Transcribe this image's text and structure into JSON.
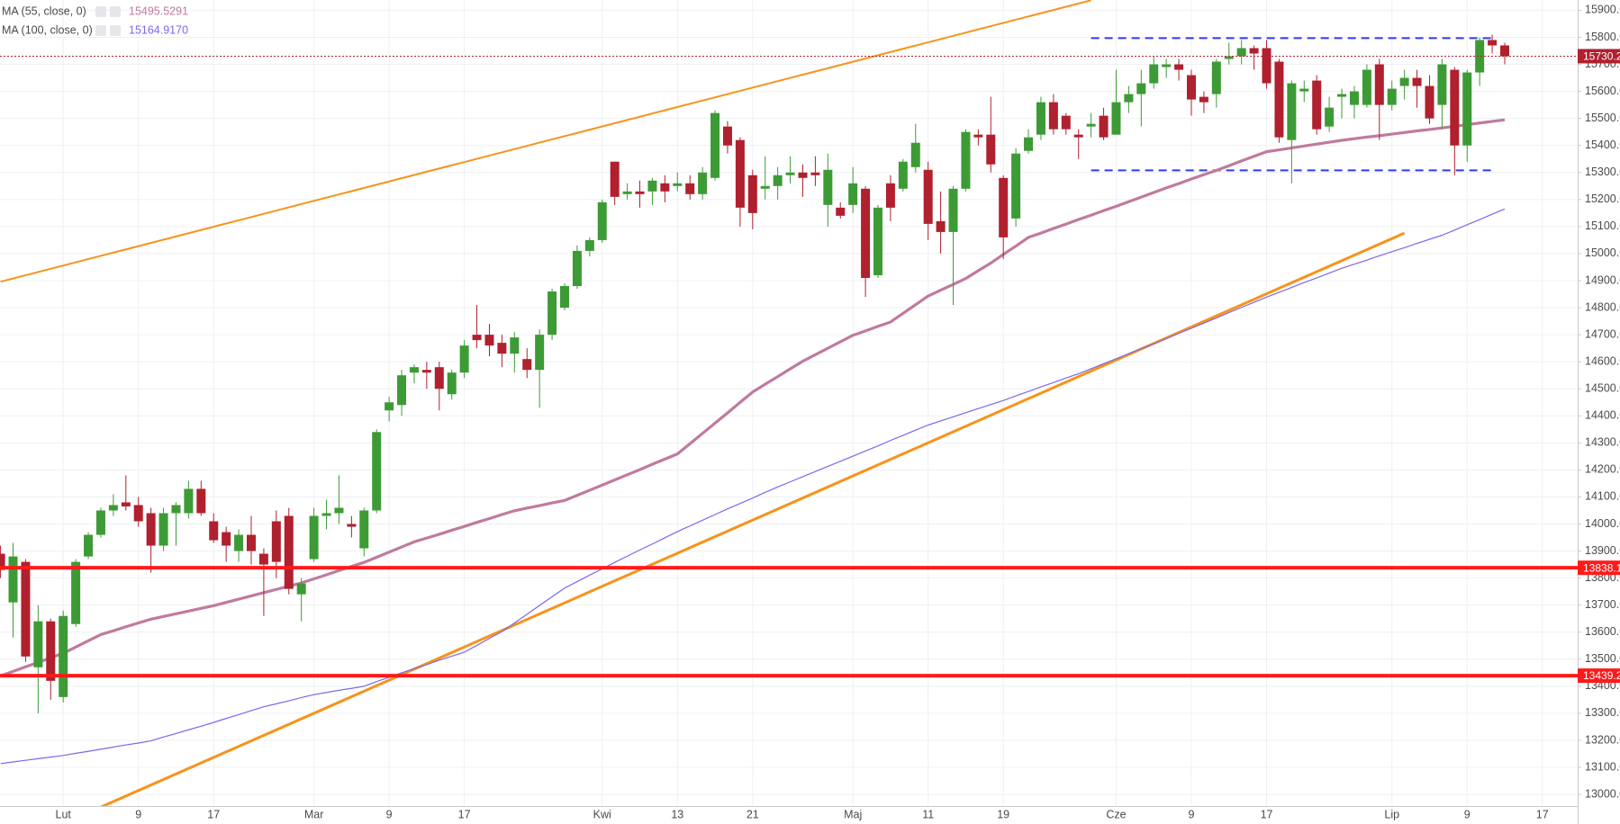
{
  "chart_data": {
    "type": "candlestick",
    "up_color": "#3d9b35",
    "down_color": "#b0202e",
    "grid": true,
    "ylim": [
      12957,
      15938
    ],
    "yticks": [
      {
        "value": 13000,
        "label": "13000.0"
      },
      {
        "value": 13100,
        "label": "13100.0"
      },
      {
        "value": 13200,
        "label": "13200.0"
      },
      {
        "value": 13300,
        "label": "13300.0"
      },
      {
        "value": 13400,
        "label": "13400.0"
      },
      {
        "value": 13500,
        "label": "13500.0"
      },
      {
        "value": 13600,
        "label": "13600.0"
      },
      {
        "value": 13700,
        "label": "13700.0"
      },
      {
        "value": 13800,
        "label": "13800.0"
      },
      {
        "value": 13900,
        "label": "13900.0"
      },
      {
        "value": 14000,
        "label": "14000.0"
      },
      {
        "value": 14100,
        "label": "14100.0"
      },
      {
        "value": 14200,
        "label": "14200.0"
      },
      {
        "value": 14300,
        "label": "14300.0"
      },
      {
        "value": 14400,
        "label": "14400.0"
      },
      {
        "value": 14500,
        "label": "14500.0"
      },
      {
        "value": 14600,
        "label": "14600.0"
      },
      {
        "value": 14700,
        "label": "14700.0"
      },
      {
        "value": 14800,
        "label": "14800.0"
      },
      {
        "value": 14900,
        "label": "14900.0"
      },
      {
        "value": 15000,
        "label": "15000.0"
      },
      {
        "value": 15100,
        "label": "15100.0"
      },
      {
        "value": 15200,
        "label": "15200.0"
      },
      {
        "value": 15300,
        "label": "15300.0"
      },
      {
        "value": 15400,
        "label": "15400.0"
      },
      {
        "value": 15500,
        "label": "15500.0"
      },
      {
        "value": 15600,
        "label": "15600.0"
      },
      {
        "value": 15700,
        "label": "15700.0"
      },
      {
        "value": 15800,
        "label": "15800.0"
      },
      {
        "value": 15900,
        "label": "15900.0"
      }
    ],
    "categories": [
      null,
      null,
      null,
      null,
      null,
      "Lut",
      null,
      null,
      null,
      null,
      null,
      "9",
      null,
      null,
      null,
      null,
      null,
      "17",
      null,
      null,
      null,
      null,
      null,
      null,
      null,
      "Mar",
      null,
      null,
      null,
      null,
      null,
      "9",
      null,
      null,
      null,
      null,
      null,
      "17",
      null,
      null,
      null,
      null,
      null,
      null,
      null,
      null,
      null,
      null,
      "Kwi",
      null,
      null,
      null,
      null,
      null,
      "13",
      null,
      null,
      null,
      null,
      null,
      "21",
      null,
      null,
      null,
      null,
      null,
      null,
      null,
      "Maj",
      null,
      null,
      null,
      null,
      null,
      "11",
      null,
      null,
      null,
      null,
      null,
      "19",
      null,
      null,
      null,
      null,
      null,
      null,
      null,
      null,
      "Cze",
      null,
      null,
      null,
      null,
      null,
      "9",
      null,
      null,
      null,
      null,
      null,
      "17",
      null,
      null,
      null,
      null,
      null,
      null,
      null,
      null,
      null,
      "Lip",
      null,
      null,
      null,
      null,
      null,
      "9",
      null,
      null,
      null,
      null,
      null,
      "17"
    ],
    "open": [
      13890,
      13710,
      13860,
      13470,
      13640,
      13360,
      13630,
      13880,
      13960,
      14050,
      14080,
      14070,
      14040,
      13920,
      14040,
      14040,
      14130,
      14010,
      13970,
      13900,
      13960,
      13890,
      14010,
      14030,
      13740,
      13870,
      14030,
      14040,
      14000,
      13910,
      14050,
      14420,
      14440,
      14560,
      14570,
      14580,
      14480,
      14560,
      14700,
      14700,
      14670,
      14630,
      14610,
      14570,
      14700,
      14800,
      14880,
      15010,
      15050,
      15340,
      15220,
      15230,
      15230,
      15260,
      15250,
      15260,
      15220,
      15280,
      15470,
      15420,
      15290,
      15240,
      15250,
      15290,
      15300,
      15300,
      15180,
      15170,
      15180,
      15240,
      14920,
      15260,
      15240,
      15320,
      15310,
      15120,
      15080,
      15240,
      15440,
      15440,
      15280,
      15130,
      15380,
      15440,
      15560,
      15510,
      15440,
      15470,
      15510,
      15440,
      15560,
      15590,
      15630,
      15690,
      15700,
      15660,
      15580,
      15590,
      15720,
      15730,
      15760,
      15760,
      15710,
      15420,
      15600,
      15640,
      15470,
      15580,
      15550,
      15550,
      15700,
      15550,
      15620,
      15650,
      15620,
      15550,
      15680,
      15400,
      15670,
      15790,
      15770,
      null,
      null,
      null
    ],
    "high": [
      13920,
      13930,
      13870,
      13700,
      13650,
      13680,
      13870,
      13970,
      14060,
      14110,
      14180,
      14100,
      14060,
      14060,
      14080,
      14160,
      14160,
      14040,
      13990,
      13980,
      14030,
      13910,
      14050,
      14060,
      13800,
      14060,
      14090,
      14180,
      14030,
      14060,
      14350,
      14470,
      14570,
      14590,
      14600,
      14600,
      14570,
      14680,
      14810,
      14740,
      14700,
      14710,
      14650,
      14720,
      14870,
      14890,
      15030,
      15060,
      15200,
      15340,
      15260,
      15270,
      15280,
      15290,
      15300,
      15290,
      15320,
      15530,
      15490,
      15430,
      15310,
      15360,
      15320,
      15360,
      15330,
      15360,
      15370,
      15190,
      15320,
      15250,
      15180,
      15290,
      15350,
      15480,
      15340,
      15230,
      15250,
      15460,
      15460,
      15580,
      15290,
      15390,
      15460,
      15580,
      15590,
      15520,
      15460,
      15520,
      15540,
      15680,
      15620,
      15680,
      15730,
      15720,
      15720,
      15680,
      15600,
      15720,
      15780,
      15790,
      15770,
      15790,
      15720,
      15640,
      15640,
      15660,
      15580,
      15610,
      15620,
      15700,
      15720,
      15640,
      15680,
      15680,
      15660,
      15720,
      15690,
      15680,
      15800,
      15810,
      15780,
      null,
      null,
      null
    ],
    "low": [
      13800,
      13580,
      13490,
      13300,
      13350,
      13340,
      13620,
      13870,
      13950,
      14030,
      14050,
      13990,
      13820,
      13900,
      13920,
      14020,
      14030,
      13930,
      13860,
      13860,
      13850,
      13660,
      13800,
      13740,
      13640,
      13860,
      13980,
      14000,
      13950,
      13880,
      14040,
      14380,
      14400,
      14520,
      14500,
      14420,
      14460,
      14540,
      14650,
      14620,
      14580,
      14560,
      14540,
      14430,
      14680,
      14790,
      14870,
      14990,
      15040,
      15180,
      15200,
      15170,
      15180,
      15190,
      15230,
      15200,
      15200,
      15270,
      15370,
      15100,
      15090,
      15200,
      15200,
      15260,
      15210,
      15250,
      15100,
      15130,
      15150,
      14840,
      14910,
      15120,
      15230,
      15300,
      15050,
      15000,
      14810,
      15230,
      15400,
      15300,
      14980,
      15100,
      15370,
      15420,
      15440,
      15440,
      15350,
      15430,
      15420,
      15440,
      15520,
      15470,
      15610,
      15650,
      15640,
      15510,
      15520,
      15540,
      15700,
      15700,
      15680,
      15610,
      15410,
      15260,
      15560,
      15440,
      15450,
      15500,
      15500,
      15540,
      15420,
      15530,
      15570,
      15540,
      15480,
      15460,
      15290,
      15340,
      15620,
      15740,
      15700,
      null,
      null,
      null
    ],
    "close": [
      13830,
      13880,
      13510,
      13640,
      13420,
      13660,
      13860,
      13960,
      14050,
      14070,
      14065,
      14010,
      13920,
      14040,
      14070,
      14130,
      14040,
      13940,
      13920,
      13960,
      13900,
      13850,
      13860,
      13760,
      13780,
      14030,
      14040,
      14060,
      13990,
      14050,
      14340,
      14450,
      14550,
      14580,
      14560,
      14500,
      14560,
      14660,
      14680,
      14660,
      14630,
      14690,
      14570,
      14700,
      14860,
      14880,
      15010,
      15050,
      15190,
      15210,
      15230,
      15220,
      15270,
      15230,
      15260,
      15220,
      15300,
      15520,
      15400,
      15170,
      15150,
      15250,
      15290,
      15300,
      15280,
      15290,
      15310,
      15140,
      15260,
      14910,
      15170,
      15170,
      15340,
      15410,
      15110,
      15080,
      15240,
      15450,
      15430,
      15330,
      15060,
      15370,
      15430,
      15560,
      15460,
      15460,
      15430,
      15480,
      15430,
      15560,
      15590,
      15630,
      15700,
      15700,
      15680,
      15570,
      15560,
      15710,
      15730,
      15760,
      15740,
      15630,
      15430,
      15630,
      15610,
      15460,
      15540,
      15590,
      15600,
      15680,
      15550,
      15610,
      15650,
      15620,
      15500,
      15700,
      15400,
      15670,
      15790,
      15770,
      15730.2,
      null,
      null,
      null
    ],
    "series": [
      {
        "name": "MA (55, close, 0)",
        "legend_value": "15495.5291",
        "color": "#c07a9e",
        "width": 3.2,
        "values": [
          13438,
          13455,
          13472,
          13488,
          13505,
          13522,
          13545,
          13568,
          13591,
          13605,
          13620,
          13634,
          13648,
          13658,
          13668,
          13678,
          13688,
          13698,
          13710,
          13722,
          13734,
          13746,
          13758,
          13770,
          13782,
          13797,
          13812,
          13828,
          13843,
          13858,
          13877,
          13896,
          13915,
          13934,
          13948,
          13962,
          13977,
          13991,
          14006,
          14020,
          14035,
          14049,
          14059,
          14068,
          14078,
          14087,
          14106,
          14125,
          14144,
          14163,
          14182,
          14201,
          14221,
          14240,
          14259,
          14297,
          14335,
          14373,
          14411,
          14450,
          14488,
          14517,
          14545,
          14574,
          14602,
          14626,
          14650,
          14674,
          14698,
          14714,
          14731,
          14747,
          14779,
          14811,
          14843,
          14865,
          14886,
          14908,
          14937,
          14965,
          14997,
          15028,
          15060,
          15076,
          15093,
          15109,
          15126,
          15142,
          15159,
          15175,
          15192,
          15209,
          15226,
          15243,
          15259,
          15276,
          15292,
          15308,
          15325,
          15343,
          15360,
          15377,
          15384,
          15391,
          15398,
          15405,
          15412,
          15419,
          15425,
          15431,
          15436,
          15442,
          15448,
          15454,
          15459,
          15465,
          15471,
          15477,
          15483,
          15489,
          15495,
          null,
          null,
          null
        ]
      },
      {
        "name": "MA (100, close, 0)",
        "legend_value": "15164.9170",
        "color": "#7b68ee",
        "width": 1.2,
        "values": [
          13114,
          13120,
          13126,
          13132,
          13138,
          13144,
          13152,
          13159,
          13167,
          13175,
          13183,
          13190,
          13198,
          13212,
          13225,
          13239,
          13252,
          13266,
          13281,
          13295,
          13310,
          13324,
          13335,
          13346,
          13358,
          13369,
          13377,
          13385,
          13392,
          13400,
          13417,
          13433,
          13450,
          13465,
          13480,
          13496,
          13511,
          13526,
          13551,
          13577,
          13602,
          13634,
          13666,
          13699,
          13731,
          13763,
          13787,
          13811,
          13834,
          13858,
          13881,
          13904,
          13926,
          13949,
          13972,
          13993,
          14014,
          14035,
          14056,
          14076,
          14096,
          14117,
          14137,
          14156,
          14175,
          14194,
          14213,
          14232,
          14251,
          14270,
          14289,
          14309,
          14328,
          14347,
          14366,
          14381,
          14396,
          14412,
          14427,
          14442,
          14457,
          14474,
          14490,
          14507,
          14523,
          14540,
          14556,
          14574,
          14593,
          14611,
          14630,
          14648,
          14667,
          14686,
          14705,
          14724,
          14743,
          14762,
          14782,
          14801,
          14820,
          14839,
          14857,
          14875,
          14893,
          14910,
          14928,
          14946,
          14961,
          14976,
          14992,
          15007,
          15022,
          15038,
          15053,
          15068,
          15087,
          15107,
          15126,
          15146,
          15165,
          null,
          null,
          null
        ]
      }
    ],
    "lines": [
      {
        "x": [
          0,
          87
        ],
        "values": [
          14896,
          15937
        ],
        "color": "#f7931a",
        "width": 2,
        "style": "solid"
      },
      {
        "x": [
          8,
          112
        ],
        "values": [
          12953,
          15076
        ],
        "color": "#f7931a",
        "width": 3,
        "style": "solid"
      },
      {
        "x": [
          87,
          119
        ],
        "values": [
          15797,
          15797
        ],
        "color": "#2e3cf0",
        "width": 2,
        "style": "dashed"
      },
      {
        "x": [
          87,
          119
        ],
        "values": [
          15308,
          15308
        ],
        "color": "#2e3cf0",
        "width": 2,
        "style": "dashed"
      }
    ],
    "hlines": [
      {
        "value": 13838.1,
        "label": "13838.1",
        "color": "#ff1a1a",
        "width": 4,
        "style": "solid"
      },
      {
        "value": 13439.2,
        "label": "13439.2",
        "color": "#ff1a1a",
        "width": 4,
        "style": "solid"
      },
      {
        "value": 15730.2,
        "label": "15730.2",
        "color": "#b0202e",
        "width": 1,
        "style": "dotted"
      }
    ]
  }
}
